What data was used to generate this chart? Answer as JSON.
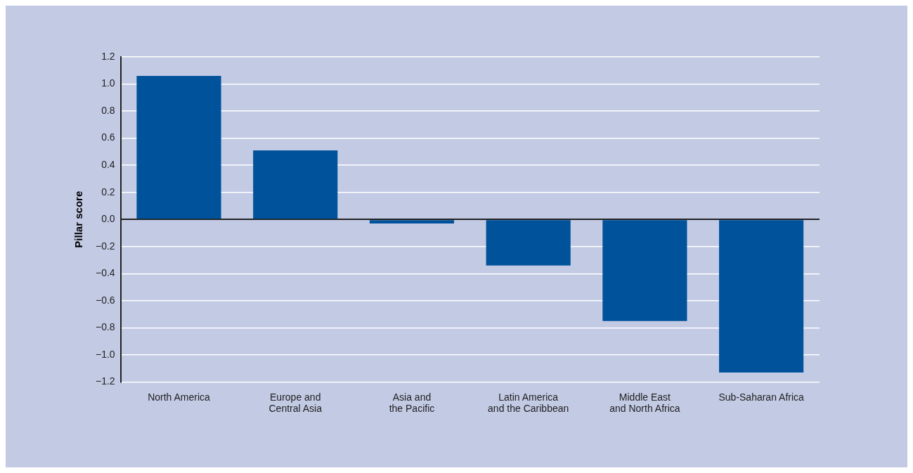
{
  "chart_data": {
    "type": "bar",
    "ylabel": "Pillar score",
    "categories": [
      "North America",
      "Europe and Central Asia",
      "Asia and the Pacific",
      "Latin America and the Caribbean",
      "Middle East and North Africa",
      "Sub-Saharan Africa"
    ],
    "values": [
      1.06,
      0.51,
      -0.03,
      -0.34,
      -0.75,
      -1.13
    ],
    "color": "#00529b",
    "ylim": [
      -1.2,
      1.2
    ],
    "yticks": [
      {
        "value": -1.2,
        "label": "−1.2"
      },
      {
        "value": -1,
        "label": "−1.0"
      },
      {
        "value": -0.8,
        "label": "−0.8"
      },
      {
        "value": -0.6,
        "label": "−0.6"
      },
      {
        "value": -0.4,
        "label": "−0.4"
      },
      {
        "value": -0.2,
        "label": "−0.2"
      },
      {
        "value": 0,
        "label": "0.0"
      },
      {
        "value": 0.2,
        "label": "0.2"
      },
      {
        "value": 0.4,
        "label": "0.4"
      },
      {
        "value": 0.6,
        "label": "0.6"
      },
      {
        "value": 0.8,
        "label": "0.8"
      },
      {
        "value": 1,
        "label": "1.0"
      },
      {
        "value": 1.2,
        "label": "1.2"
      }
    ],
    "grid": "y",
    "legend": false
  }
}
